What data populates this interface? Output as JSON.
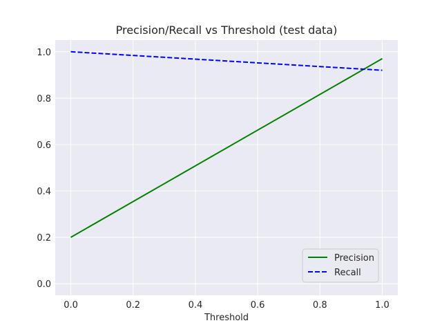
{
  "chart_data": {
    "type": "line",
    "title": "Precision/Recall vs Threshold (test data)",
    "xlabel": "Threshold",
    "ylabel": "",
    "xlim": [
      -0.05,
      1.05
    ],
    "ylim": [
      -0.05,
      1.05
    ],
    "xticks": [
      0.0,
      0.2,
      0.4,
      0.6,
      0.8,
      1.0
    ],
    "xtick_labels": [
      "0.0",
      "0.2",
      "0.4",
      "0.6",
      "0.8",
      "1.0"
    ],
    "yticks": [
      0.0,
      0.2,
      0.4,
      0.6,
      0.8,
      1.0
    ],
    "ytick_labels": [
      "0.0",
      "0.2",
      "0.4",
      "0.6",
      "0.8",
      "1.0"
    ],
    "grid": true,
    "background": "#eaeaf2",
    "legend_position": "lower-right",
    "series": [
      {
        "name": "Precision",
        "color": "#008000",
        "linestyle": "solid",
        "x": [
          0.0,
          1.0
        ],
        "y": [
          0.2,
          0.97
        ]
      },
      {
        "name": "Recall",
        "color": "#0000ff",
        "linestyle": "dashed",
        "x": [
          0.0,
          1.0
        ],
        "y": [
          1.0,
          0.92
        ]
      }
    ]
  }
}
